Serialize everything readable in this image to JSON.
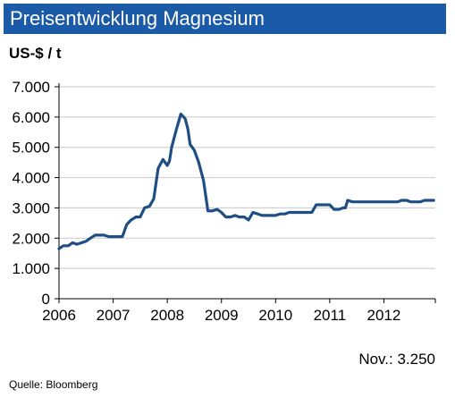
{
  "header": {
    "title": "Preisentwicklung Magnesium"
  },
  "unit_label": "US-$ / t",
  "note": "Nov.: 3.250",
  "source": "Quelle:  Bloomberg",
  "colors": {
    "title_bar": "#1a5aa6",
    "line": "#1f4e86",
    "grid": "#c8c8c8"
  },
  "chart_data": {
    "type": "line",
    "title": "Preisentwicklung Magnesium",
    "ylabel": "US-$ / t",
    "xlabel": "",
    "ylim": [
      0,
      7000
    ],
    "xlim": [
      2006,
      2012.95
    ],
    "grid": true,
    "y_ticks": [
      0,
      1000,
      2000,
      3000,
      4000,
      5000,
      6000,
      7000
    ],
    "y_tick_labels": [
      "0",
      "1.000",
      "2.000",
      "3.000",
      "4.000",
      "5.000",
      "6.000",
      "7.000"
    ],
    "x_ticks": [
      2006,
      2007,
      2008,
      2009,
      2010,
      2011,
      2012
    ],
    "x_tick_labels": [
      "2006",
      "2007",
      "2008",
      "2009",
      "2010",
      "2011",
      "2012"
    ],
    "series": [
      {
        "x": [
          2006.0,
          2006.08,
          2006.17,
          2006.25,
          2006.33,
          2006.42,
          2006.5,
          2006.58,
          2006.67,
          2006.75,
          2006.83,
          2006.92,
          2007.0,
          2007.08,
          2007.17,
          2007.25,
          2007.33,
          2007.42,
          2007.5,
          2007.58,
          2007.67,
          2007.75,
          2007.83,
          2007.92,
          2008.0,
          2008.04,
          2008.08,
          2008.17,
          2008.25,
          2008.33,
          2008.38,
          2008.42,
          2008.5,
          2008.58,
          2008.67,
          2008.75,
          2008.83,
          2008.92,
          2009.0,
          2009.08,
          2009.17,
          2009.25,
          2009.33,
          2009.42,
          2009.5,
          2009.58,
          2009.67,
          2009.75,
          2009.83,
          2009.92,
          2010.0,
          2010.08,
          2010.17,
          2010.25,
          2010.33,
          2010.42,
          2010.5,
          2010.58,
          2010.67,
          2010.75,
          2010.83,
          2010.92,
          2011.0,
          2011.08,
          2011.17,
          2011.25,
          2011.29,
          2011.33,
          2011.42,
          2011.5,
          2011.58,
          2011.67,
          2011.75,
          2011.83,
          2011.92,
          2012.0,
          2012.08,
          2012.17,
          2012.25,
          2012.33,
          2012.42,
          2012.5,
          2012.58,
          2012.67,
          2012.75,
          2012.83,
          2012.92
        ],
        "values": [
          1650,
          1750,
          1750,
          1850,
          1800,
          1850,
          1900,
          2000,
          2100,
          2100,
          2100,
          2050,
          2050,
          2050,
          2050,
          2450,
          2600,
          2700,
          2700,
          3000,
          3050,
          3300,
          4300,
          4600,
          4400,
          4550,
          5000,
          5600,
          6100,
          5950,
          5600,
          5100,
          4900,
          4500,
          3900,
          2900,
          2900,
          2950,
          2850,
          2700,
          2700,
          2750,
          2700,
          2700,
          2600,
          2850,
          2800,
          2750,
          2750,
          2750,
          2750,
          2800,
          2800,
          2850,
          2850,
          2850,
          2850,
          2850,
          2850,
          3100,
          3100,
          3100,
          3100,
          2950,
          2950,
          3000,
          3000,
          3250,
          3200,
          3200,
          3200,
          3200,
          3200,
          3200,
          3200,
          3200,
          3200,
          3200,
          3200,
          3250,
          3250,
          3200,
          3200,
          3200,
          3250,
          3250,
          3250
        ]
      }
    ]
  }
}
